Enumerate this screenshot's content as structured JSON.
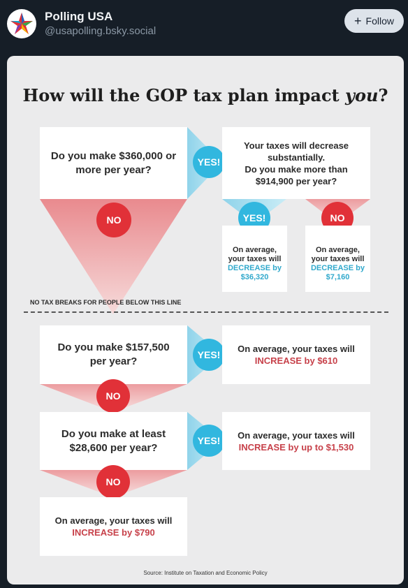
{
  "header": {
    "name": "Polling USA",
    "handle": "@usapolling.bsky.social",
    "follow_label": "Follow"
  },
  "infographic": {
    "title_main": "How will the GOP tax plan impact ",
    "title_emph": "you",
    "title_end": "?",
    "q1": "Do you make $360,000 or more per year?",
    "yes": "YES!",
    "no": "NO",
    "q1_yes_line1": "Your taxes will decrease substantially.",
    "q1_yes_line2": "Do you make more than $914,900 per year?",
    "avg_prefix": "On average, your taxes will",
    "decrease_label": "DECREASE by",
    "dec_amount_yes": "$36,320",
    "dec_amount_no": "$7,160",
    "cutoff": "NO TAX BREAKS FOR PEOPLE BELOW THIS LINE",
    "q2": "Do you make $157,500 per year?",
    "q2_yes_prefix": "On average, your taxes will",
    "q2_yes_inc": "INCREASE by $610",
    "q3": "Do you make at least $28,600 per year?",
    "q3_yes_prefix": "On average, your taxes will",
    "q3_yes_inc": "INCREASE by up to $1,530",
    "final_prefix": "On average, your taxes will",
    "final_inc": "INCREASE by $790",
    "source": "Source: Institute on Taxation and Economic Policy"
  },
  "colors": {
    "yes": "#31b7df",
    "no": "#e13138",
    "increase": "#c7414a",
    "decrease": "#31a9cc"
  }
}
